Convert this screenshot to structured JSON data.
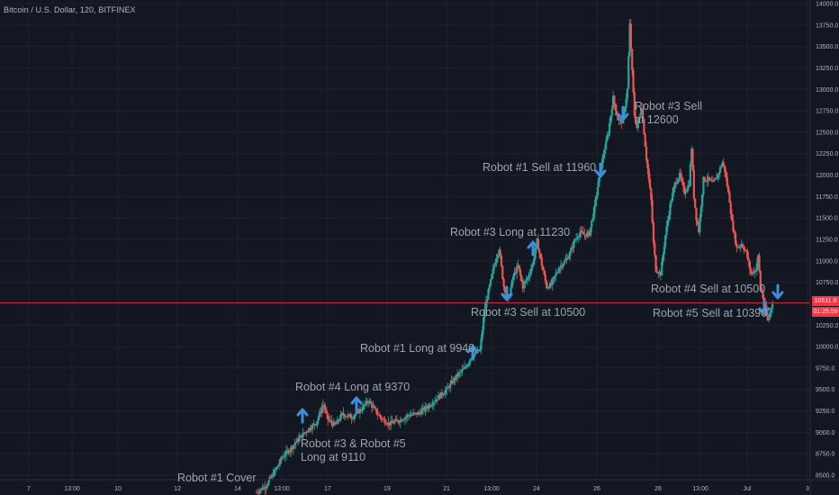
{
  "header": {
    "title": "Bitcoin / U.S. Dollar, 120, BITFINEX"
  },
  "colors": {
    "background": "#131722",
    "grid": "#1f2433",
    "up": "#26a69a",
    "down": "#ef5350",
    "last_line": "#f23645",
    "arrow": "#3d8ed8",
    "text": "#9ba3ab"
  },
  "price_marker": {
    "price": "10511.0",
    "countdown": "01:25:59"
  },
  "annotations": [
    {
      "id": "robot1-cover",
      "text": "Robot #1 Cover"
    },
    {
      "id": "robot3-5-long",
      "text": "Robot #3 & Robot #5\nLong at 9110"
    },
    {
      "id": "robot4-long",
      "text": "Robot #4 Long at 9370"
    },
    {
      "id": "robot1-long",
      "text": "Robot #1 Long at 9940"
    },
    {
      "id": "robot3-sell-10500",
      "text": "Robot #3 Sell at 10500"
    },
    {
      "id": "robot3-long-11230",
      "text": "Robot #3 Long at 11230"
    },
    {
      "id": "robot1-sell",
      "text": "Robot #1 Sell at 11960"
    },
    {
      "id": "robot3-sell-12600",
      "text": "Robot #3 Sell\nat 12600"
    },
    {
      "id": "robot4-sell",
      "text": "Robot #4 Sell at 10500"
    },
    {
      "id": "robot5-sell",
      "text": "Robot #5 Sell at 10390"
    }
  ],
  "chart_data": {
    "type": "candlestick",
    "title": "Bitcoin / U.S. Dollar, 120, BITFINEX",
    "y_ticks": [
      14000,
      13750,
      13500,
      13250,
      13000,
      12750,
      12500,
      12250,
      12000,
      11750,
      11500,
      11250,
      11000,
      10750,
      10500,
      10250,
      10000,
      9750,
      9500,
      9250,
      9000,
      8750,
      8500
    ],
    "y_tick_labels": [
      "14000.0",
      "13750.0",
      "13500.0",
      "13250.0",
      "13000.0",
      "12750.0",
      "12500.0",
      "12250.0",
      "12000.0",
      "11750.0",
      "11500.0",
      "11250.0",
      "11000.0",
      "10750.0",
      "10500.0",
      "10250.0",
      "10000.0",
      "9750.0",
      "9500.0",
      "9250.0",
      "9000.0",
      "8750.0",
      "8500.0"
    ],
    "x_ticks": [
      "7",
      "13:00",
      "10",
      "12",
      "14",
      "13:00",
      "17",
      "19",
      "21",
      "13:00",
      "24",
      "26",
      "28",
      "13:00",
      "Jul",
      "3"
    ],
    "ylim": [
      8470,
      14020
    ],
    "last_price": 10511.0,
    "trend_points": [
      [
        0,
        8300
      ],
      [
        4,
        8380
      ],
      [
        8,
        8560
      ],
      [
        11,
        8720
      ],
      [
        14,
        8800
      ],
      [
        17,
        8900
      ],
      [
        21,
        9020
      ],
      [
        25,
        9110
      ],
      [
        28,
        9320
      ],
      [
        30,
        9150
      ],
      [
        33,
        9080
      ],
      [
        36,
        9210
      ],
      [
        40,
        9180
      ],
      [
        44,
        9270
      ],
      [
        47,
        9370
      ],
      [
        50,
        9250
      ],
      [
        53,
        9150
      ],
      [
        56,
        9100
      ],
      [
        60,
        9140
      ],
      [
        64,
        9200
      ],
      [
        68,
        9220
      ],
      [
        72,
        9300
      ],
      [
        76,
        9400
      ],
      [
        80,
        9500
      ],
      [
        84,
        9650
      ],
      [
        88,
        9760
      ],
      [
        90,
        9870
      ],
      [
        92,
        9920
      ],
      [
        94,
        9960
      ],
      [
        95,
        10200
      ],
      [
        96,
        10450
      ],
      [
        98,
        10700
      ],
      [
        100,
        10950
      ],
      [
        102,
        11150
      ],
      [
        104,
        10700
      ],
      [
        106,
        10550
      ],
      [
        108,
        10820
      ],
      [
        110,
        10940
      ],
      [
        112,
        10700
      ],
      [
        114,
        10800
      ],
      [
        116,
        10950
      ],
      [
        118,
        11230
      ],
      [
        120,
        10950
      ],
      [
        122,
        10700
      ],
      [
        124,
        10720
      ],
      [
        126,
        10850
      ],
      [
        128,
        10950
      ],
      [
        130,
        11000
      ],
      [
        132,
        11100
      ],
      [
        134,
        11250
      ],
      [
        136,
        11330
      ],
      [
        138,
        11300
      ],
      [
        140,
        11320
      ],
      [
        142,
        11600
      ],
      [
        144,
        11950
      ],
      [
        146,
        12250
      ],
      [
        148,
        12500
      ],
      [
        150,
        12900
      ],
      [
        152,
        12650
      ],
      [
        154,
        12620
      ],
      [
        156,
        13000
      ],
      [
        157,
        13750
      ],
      [
        158,
        13200
      ],
      [
        159,
        12700
      ],
      [
        160,
        12550
      ],
      [
        162,
        12800
      ],
      [
        164,
        12200
      ],
      [
        166,
        11700
      ],
      [
        167,
        11200
      ],
      [
        168,
        10900
      ],
      [
        170,
        10850
      ],
      [
        172,
        11300
      ],
      [
        174,
        11650
      ],
      [
        176,
        11900
      ],
      [
        178,
        12000
      ],
      [
        180,
        11800
      ],
      [
        182,
        11900
      ],
      [
        183,
        12320
      ],
      [
        184,
        11750
      ],
      [
        185,
        11500
      ],
      [
        186,
        11350
      ],
      [
        188,
        11950
      ],
      [
        190,
        11950
      ],
      [
        192,
        11900
      ],
      [
        194,
        12000
      ],
      [
        196,
        12150
      ],
      [
        197,
        12050
      ],
      [
        199,
        11700
      ],
      [
        200,
        11450
      ],
      [
        202,
        11150
      ],
      [
        204,
        11200
      ],
      [
        206,
        11100
      ],
      [
        208,
        10850
      ],
      [
        210,
        10900
      ],
      [
        211,
        11050
      ],
      [
        212,
        10700
      ],
      [
        214,
        10450
      ],
      [
        215,
        10300
      ],
      [
        216,
        10400
      ],
      [
        217,
        10520
      ]
    ]
  }
}
